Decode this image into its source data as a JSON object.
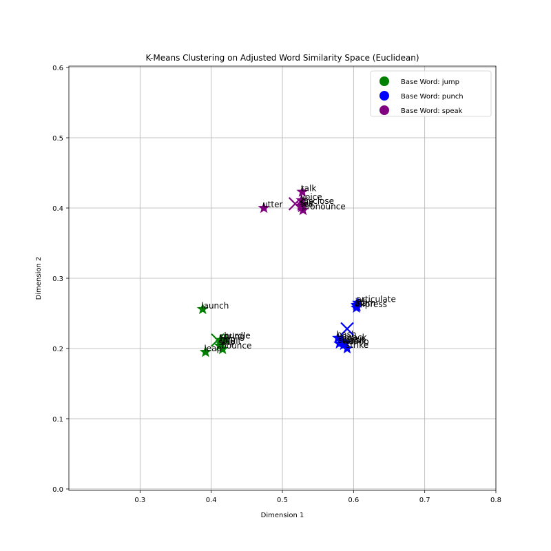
{
  "chart_data": {
    "type": "scatter",
    "title": "K-Means Clustering on Adjusted Word Similarity Space (Euclidean)",
    "xlabel": "Dimension 1",
    "ylabel": "Dimension 2",
    "xlim": [
      0.2,
      0.8
    ],
    "ylim": [
      -0.002,
      0.602
    ],
    "xticks": [
      0.3,
      0.4,
      0.5,
      0.6,
      0.7,
      0.8
    ],
    "yticks": [
      0.0,
      0.1,
      0.2,
      0.3,
      0.4,
      0.5,
      0.6
    ],
    "grid": true,
    "legend_position": "top-right",
    "legend": [
      "Base Word: jump",
      "Base Word: punch",
      "Base Word: speak"
    ],
    "colors": {
      "jump": "#008000",
      "punch": "#0000ff",
      "speak": "#800080"
    },
    "series": [
      {
        "name": "Base Word: jump",
        "color": "#008000",
        "points": [
          {
            "word": "launch",
            "x": 0.388,
            "y": 0.256
          },
          {
            "word": "leap",
            "x": 0.392,
            "y": 0.195
          },
          {
            "word": "bounce",
            "x": 0.416,
            "y": 0.199
          },
          {
            "word": "spring",
            "x": 0.413,
            "y": 0.212
          },
          {
            "word": "hurdle",
            "x": 0.42,
            "y": 0.213
          },
          {
            "word": "vault",
            "x": 0.415,
            "y": 0.206
          },
          {
            "word": "skip",
            "x": 0.412,
            "y": 0.204
          },
          {
            "word": "hop",
            "x": 0.414,
            "y": 0.209
          }
        ]
      },
      {
        "name": "Base Word: punch",
        "color": "#0000ff",
        "points": [
          {
            "word": "articulate",
            "x": 0.606,
            "y": 0.265
          },
          {
            "word": "jab",
            "x": 0.604,
            "y": 0.262
          },
          {
            "word": "slam",
            "x": 0.605,
            "y": 0.26
          },
          {
            "word": "express",
            "x": 0.604,
            "y": 0.258
          },
          {
            "word": "bash",
            "x": 0.578,
            "y": 0.215
          },
          {
            "word": "smack",
            "x": 0.583,
            "y": 0.211
          },
          {
            "word": "belt",
            "x": 0.585,
            "y": 0.209
          },
          {
            "word": "clout",
            "x": 0.589,
            "y": 0.208
          },
          {
            "word": "smash",
            "x": 0.58,
            "y": 0.207
          },
          {
            "word": "wallop",
            "x": 0.586,
            "y": 0.205
          },
          {
            "word": "strike",
            "x": 0.591,
            "y": 0.2
          }
        ]
      },
      {
        "name": "Base Word: speak",
        "color": "#800080",
        "points": [
          {
            "word": "talk",
            "x": 0.528,
            "y": 0.423
          },
          {
            "word": "voice",
            "x": 0.527,
            "y": 0.411
          },
          {
            "word": "utter",
            "x": 0.474,
            "y": 0.4
          },
          {
            "word": "disclose",
            "x": 0.528,
            "y": 0.405
          },
          {
            "word": "say",
            "x": 0.526,
            "y": 0.403
          },
          {
            "word": "tell",
            "x": 0.527,
            "y": 0.401
          },
          {
            "word": "pronounce",
            "x": 0.529,
            "y": 0.397
          }
        ]
      }
    ],
    "centroids": [
      {
        "cluster": "jump",
        "x": 0.409,
        "y": 0.212
      },
      {
        "cluster": "punch",
        "x": 0.591,
        "y": 0.228
      },
      {
        "cluster": "speak",
        "x": 0.518,
        "y": 0.406
      }
    ]
  }
}
